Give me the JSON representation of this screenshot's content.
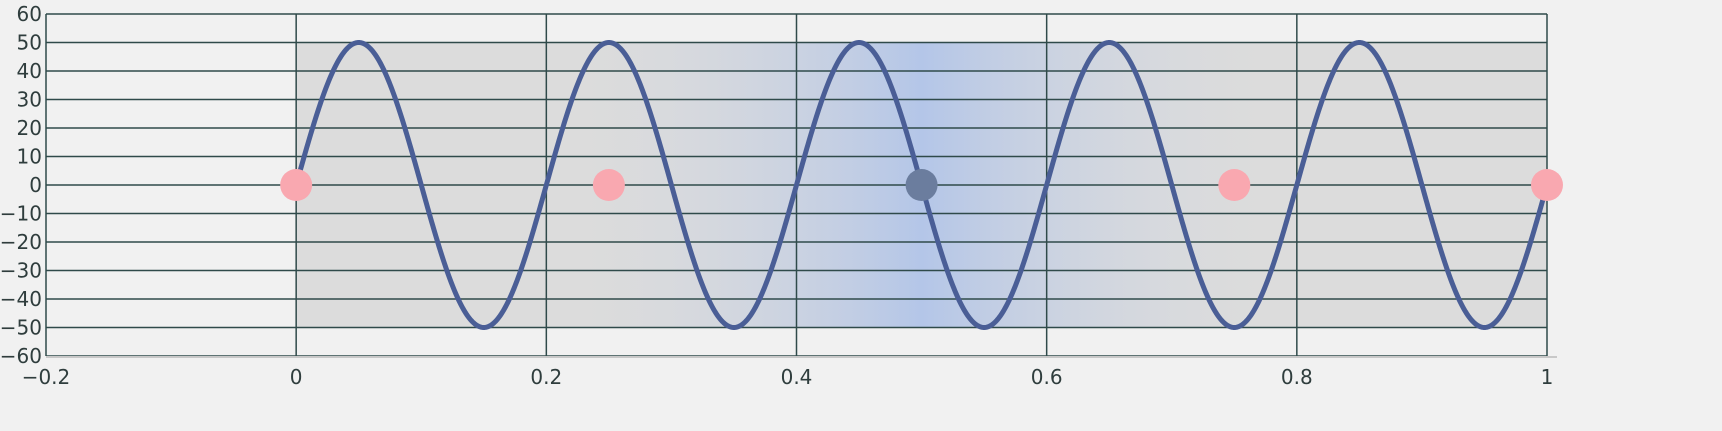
{
  "chart_data": {
    "type": "line",
    "title": "",
    "xlabel": "",
    "ylabel": "",
    "xlim": [
      -0.2,
      1.0
    ],
    "ylim": [
      -60,
      60
    ],
    "x_ticks": [
      -0.2,
      0,
      0.2,
      0.4,
      0.6,
      0.8,
      1.0
    ],
    "x_tick_labels": [
      "−0.2",
      "0",
      "0.2",
      "0.4",
      "0.6",
      "0.8",
      "1"
    ],
    "y_ticks": [
      -60,
      -50,
      -40,
      -30,
      -20,
      -10,
      0,
      10,
      20,
      30,
      40,
      50,
      60
    ],
    "y_tick_labels": [
      "−60",
      "−50",
      "−40",
      "−30",
      "−20",
      "−10",
      "0",
      "10",
      "20",
      "30",
      "40",
      "50",
      "60"
    ],
    "grid": true,
    "background_band": {
      "x": [
        0,
        1
      ],
      "y": [
        -50,
        50
      ],
      "color": "#dcdcdc"
    },
    "highlight_band": {
      "x": [
        0.4,
        0.6
      ],
      "peak_x": 0.5,
      "color": "#b4c6e8"
    },
    "series": [
      {
        "function": "50*sin(10*pi*x)",
        "amplitude": 50,
        "frequency": 5,
        "x_range": [
          0,
          1
        ],
        "color": "#4a5e96"
      }
    ],
    "markers": [
      {
        "x": 0,
        "y": 0,
        "color": "#f9a8b0"
      },
      {
        "x": 0.25,
        "y": 0,
        "color": "#f9a8b0"
      },
      {
        "x": 0.5,
        "y": 0,
        "color": "#6b7d9e"
      },
      {
        "x": 0.75,
        "y": 0,
        "color": "#f9a8b0"
      },
      {
        "x": 1.0,
        "y": 0,
        "color": "#f9a8b0"
      }
    ],
    "colors": {
      "background": "#f1f1f1",
      "grid": "#2f4a4a"
    }
  }
}
